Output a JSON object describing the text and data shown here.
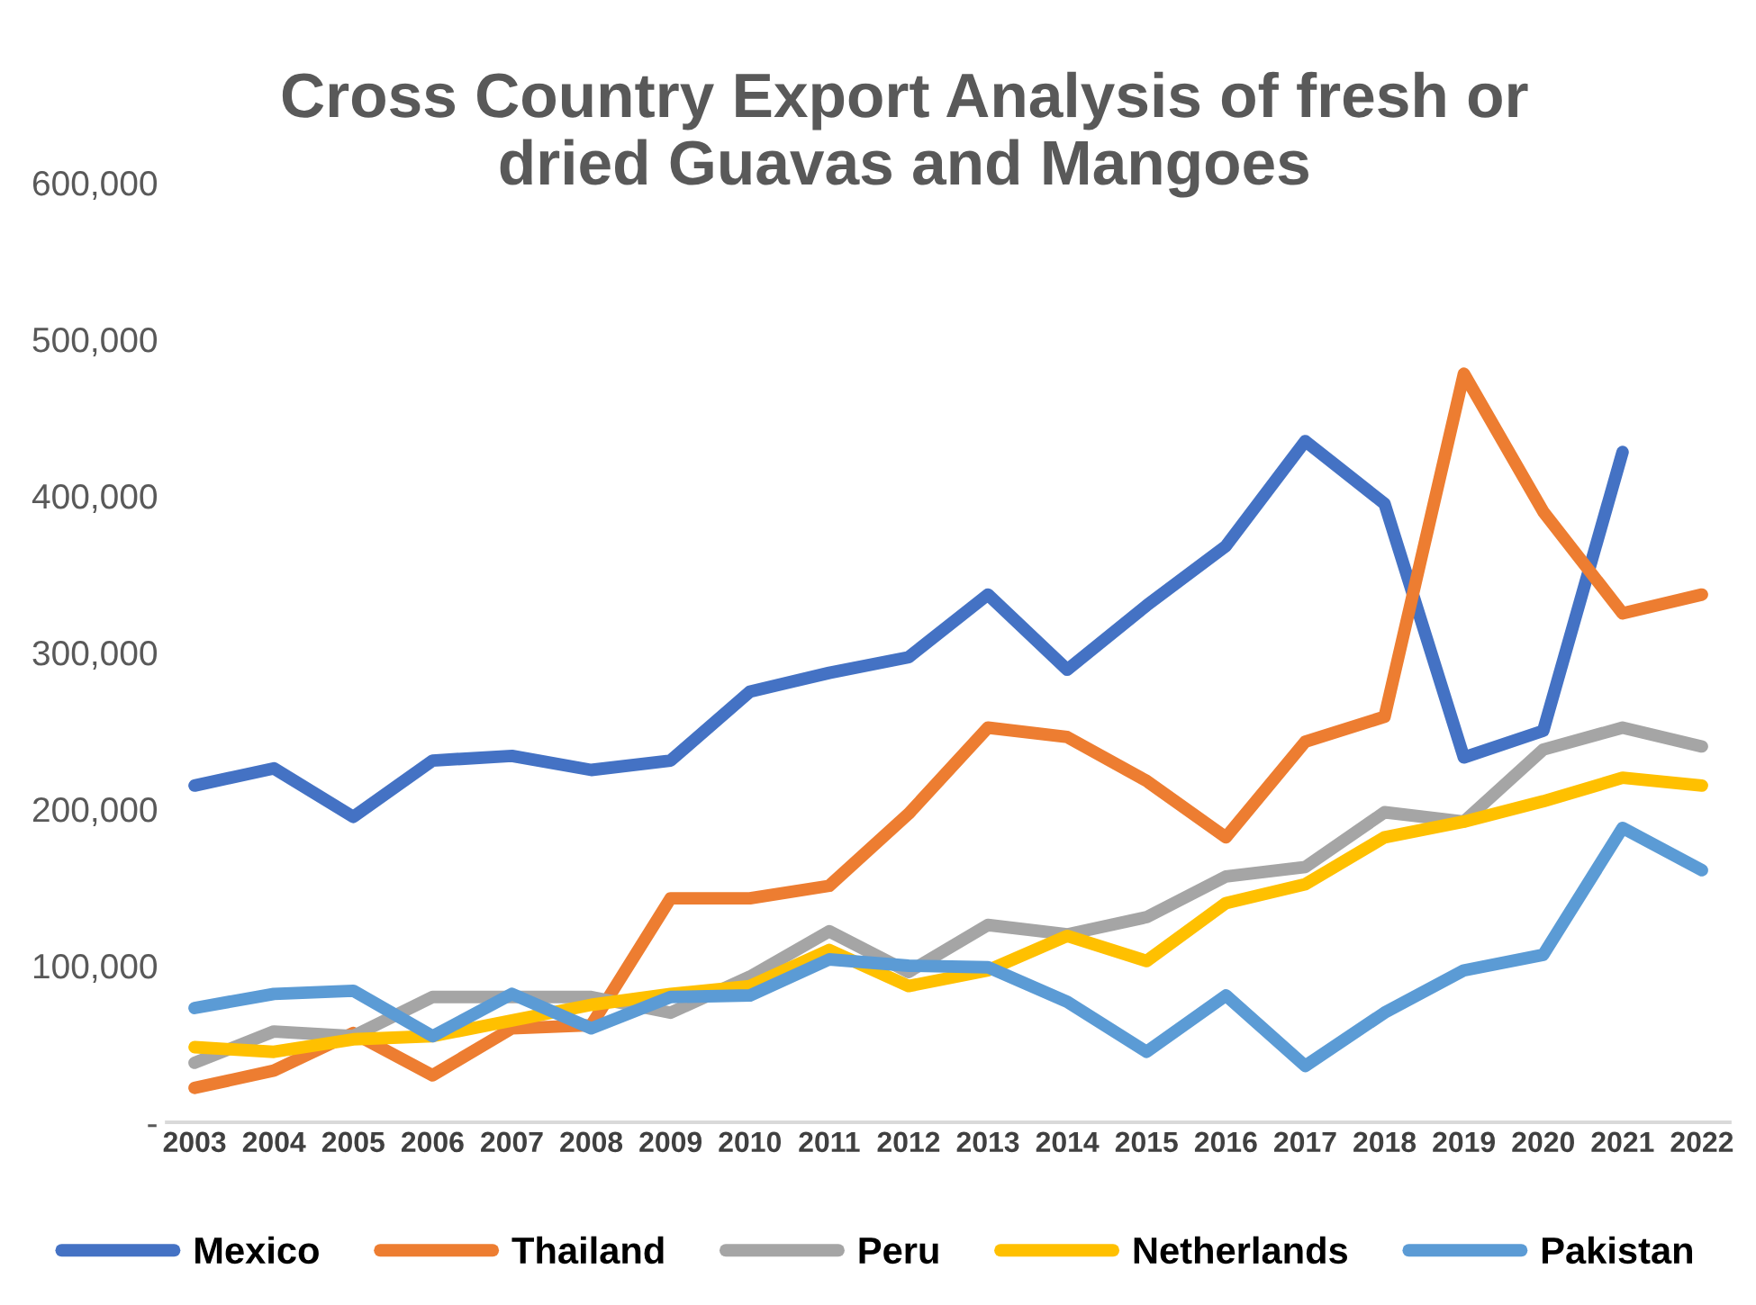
{
  "chart_data": {
    "type": "line",
    "title": "Cross Country Export Analysis of fresh or\ndried Guavas and Mangoes",
    "categories": [
      "2003",
      "2004",
      "2005",
      "2006",
      "2007",
      "2008",
      "2009",
      "2010",
      "2011",
      "2012",
      "2013",
      "2014",
      "2015",
      "2016",
      "2017",
      "2018",
      "2019",
      "2020",
      "2021",
      "2022"
    ],
    "series": [
      {
        "name": "Mexico",
        "color": "#4472c4",
        "values": [
          215000,
          226000,
          195000,
          231000,
          234000,
          225000,
          231000,
          275000,
          287000,
          297000,
          337000,
          289000,
          330000,
          368000,
          435000,
          395000,
          233000,
          250000,
          428000,
          null
        ]
      },
      {
        "name": "Thailand",
        "color": "#ed7d31",
        "values": [
          22000,
          33000,
          57000,
          30000,
          60000,
          62000,
          143000,
          143000,
          151000,
          197000,
          252000,
          246000,
          218000,
          182000,
          243000,
          259000,
          478000,
          390000,
          325000,
          337000
        ]
      },
      {
        "name": "Peru",
        "color": "#a5a5a5",
        "values": [
          38000,
          58000,
          55000,
          80000,
          80000,
          80000,
          70000,
          93000,
          122000,
          96000,
          126000,
          120000,
          131000,
          157000,
          163000,
          198000,
          192000,
          238000,
          252000,
          240000
        ]
      },
      {
        "name": "Netherlands",
        "color": "#ffc000",
        "values": [
          48000,
          45000,
          53000,
          55000,
          65000,
          75000,
          82000,
          87000,
          110000,
          87000,
          97000,
          119000,
          103000,
          140000,
          152000,
          182000,
          192000,
          205000,
          220000,
          215000
        ]
      },
      {
        "name": "Pakistan",
        "color": "#5b9bd5",
        "values": [
          73000,
          82000,
          84000,
          55000,
          82000,
          60000,
          80000,
          81000,
          104000,
          100000,
          99000,
          77000,
          45000,
          81000,
          36000,
          70000,
          97000,
          107000,
          188000,
          161000
        ]
      }
    ],
    "ylim": [
      0,
      600000
    ],
    "yticks": [
      {
        "value": 0,
        "label": "-"
      },
      {
        "value": 100000,
        "label": "100,000"
      },
      {
        "value": 200000,
        "label": "200,000"
      },
      {
        "value": 300000,
        "label": "300,000"
      },
      {
        "value": 400000,
        "label": "400,000"
      },
      {
        "value": 500000,
        "label": "500,000"
      },
      {
        "value": 600000,
        "label": "600,000"
      }
    ],
    "grid": false,
    "legend": "bottom",
    "marker": "none",
    "line_style": "solid"
  }
}
